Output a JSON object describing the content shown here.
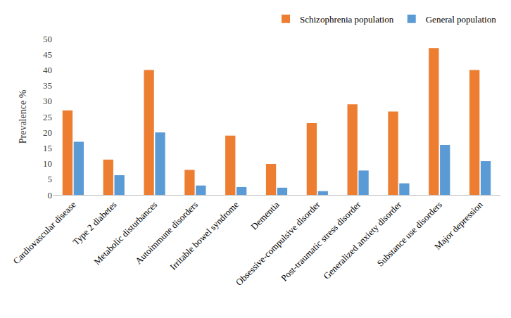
{
  "chart_data": {
    "type": "bar",
    "y_label": "Prevalence %",
    "categories": [
      "Cardiovascular disease",
      "Type 2 diabetes",
      "Metabolic disturbances",
      "Autoimmune disorders",
      "Irritable bowel syndrome",
      "Dementia",
      "Obsessive-compulsive disorder",
      "Post-traumatic stress disorder",
      "Generalized anxiety disorder",
      "Substance use disorders",
      "Major depression"
    ],
    "series": [
      {
        "name": "Schizophrenia population",
        "color": "#ED7D31",
        "values": [
          27,
          11.3,
          40,
          8,
          19,
          9.9,
          23,
          29,
          26.7,
          47,
          40
        ]
      },
      {
        "name": "General population",
        "color": "#5B9BD5",
        "values": [
          17,
          6.3,
          20,
          3,
          2.5,
          2.3,
          1.2,
          7.8,
          3.7,
          16,
          10.8
        ]
      }
    ],
    "ylim": [
      0,
      50
    ],
    "yticks": [
      0,
      5,
      10,
      15,
      20,
      25,
      30,
      35,
      40,
      45,
      50
    ],
    "grid": false,
    "legend": "top-right"
  }
}
